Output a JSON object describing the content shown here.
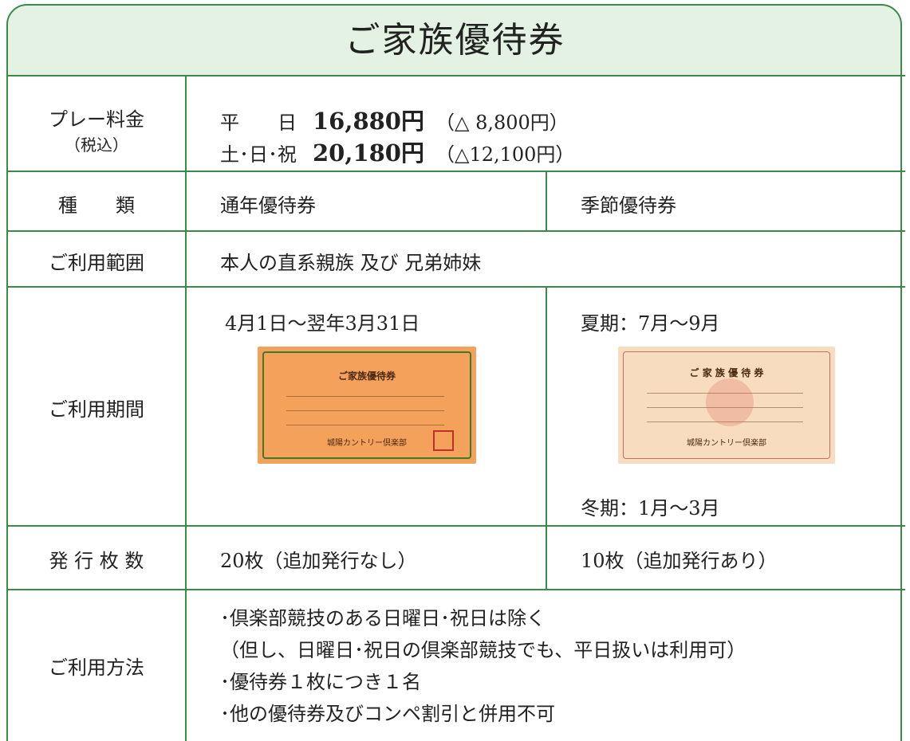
{
  "title": "ご家族優待券",
  "rows": [
    {
      "label": "プレー料金",
      "sublabel": "（税込）",
      "prices": [
        {
          "day": "平　　日",
          "price": "16,880円",
          "discount": "（△ 8,800円）"
        },
        {
          "day": "土･日･祝",
          "price": "20,180円",
          "discount": "（△12,100円）"
        }
      ]
    },
    {
      "label": "種　　類",
      "cells": [
        "通年優待券",
        "季節優待券"
      ]
    },
    {
      "label": "ご利用範囲",
      "cells": [
        "本人の直系親族 及び 兄弟姉妹"
      ]
    },
    {
      "label": "ご利用期間",
      "cells": [
        "4月1日～翌年3月31日",
        "夏期：7月～9月",
        "冬期：1月～3月"
      ],
      "images": [
        {
          "title": "ご家族優待券",
          "club": "城陽カントリー倶楽部"
        },
        {
          "title": "ご 家 族 優 待 券",
          "club": "城陽カントリー倶楽部"
        }
      ]
    },
    {
      "label": "発 行 枚 数",
      "cells": [
        "20枚（追加発行なし）",
        "10枚（追加発行あり）"
      ]
    },
    {
      "label": "ご利用方法",
      "cells": [
        "･倶楽部競技のある日曜日･祝日は除く",
        "（但し、日曜日･祝日の倶楽部競技でも、平日扱いは利用可）",
        "･優待券１枚につき１名",
        "･他の優待券及びコンペ割引と併用不可"
      ]
    }
  ]
}
